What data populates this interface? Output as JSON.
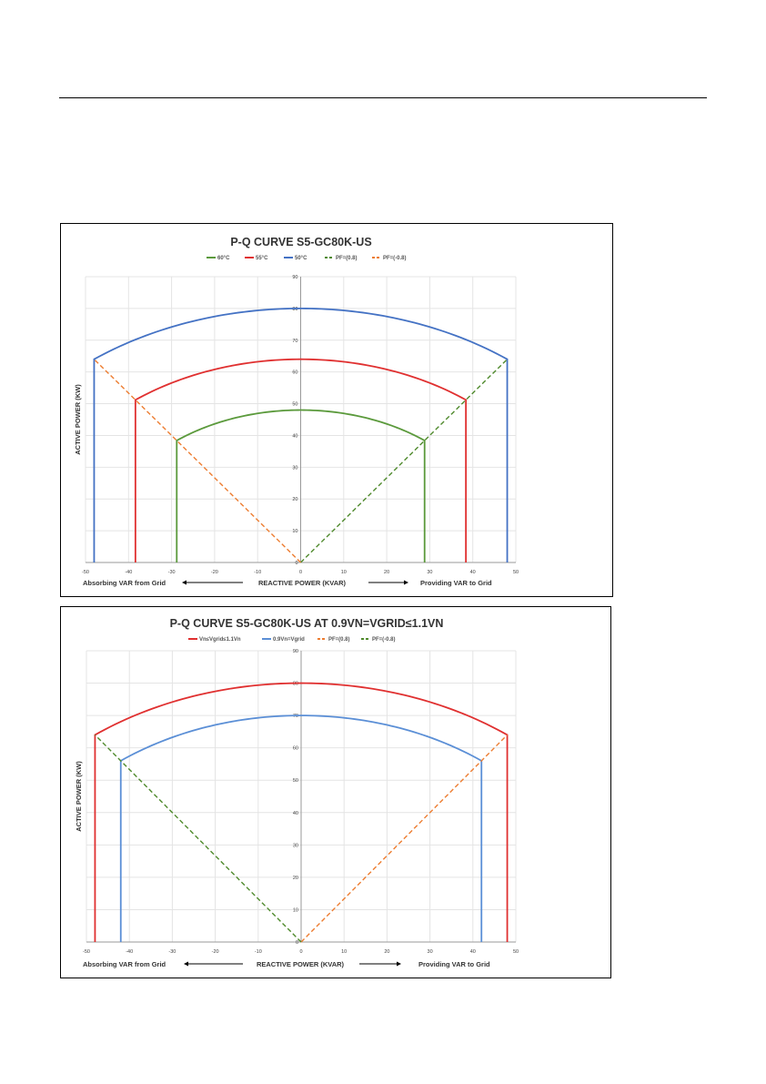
{
  "colors": {
    "green": "#5b9a3c",
    "red": "#e03030",
    "blue": "#4472c4",
    "orange": "#ed7d31",
    "grid": "#e4e4e4",
    "dark_green": "#4f8a2c",
    "light_blue": "#5b8fd6"
  },
  "chart_data": [
    {
      "type": "line",
      "title": "P-Q CURVE S5-GC80K-US",
      "xlabel": "REACTIVE POWER (KVAR)",
      "ylabel": "ACTIVE POWER (KW)",
      "xlim": [
        -50,
        50
      ],
      "ylim": [
        0,
        90
      ],
      "xticks": [
        -50,
        -40,
        -30,
        -20,
        -10,
        0,
        10,
        20,
        30,
        40,
        50
      ],
      "yticks": [
        0,
        10,
        20,
        30,
        40,
        50,
        60,
        70,
        80,
        90
      ],
      "grid": true,
      "legend_position": "top",
      "annotation_left": "Absorbing VAR from Grid",
      "annotation_right": "Providing VAR to Grid",
      "series": [
        {
          "name": "60°C",
          "color": "#5b9a3c",
          "style": "solid",
          "kind": "arc",
          "apparent": 48,
          "corner_q": 28.8,
          "corner_p": 38.4
        },
        {
          "name": "55°C",
          "color": "#e03030",
          "style": "solid",
          "kind": "arc",
          "apparent": 64,
          "corner_q": 38.4,
          "corner_p": 51.2
        },
        {
          "name": "50°C",
          "color": "#4472c4",
          "style": "solid",
          "kind": "arc",
          "apparent": 80,
          "corner_q": 48,
          "corner_p": 64
        },
        {
          "name": "PF=(0.8)",
          "color": "#4f8a2c",
          "style": "dashed",
          "kind": "line",
          "points": [
            [
              0,
              0
            ],
            [
              48,
              64
            ]
          ]
        },
        {
          "name": "PF=(-0.8)",
          "color": "#ed7d31",
          "style": "dashed",
          "kind": "line",
          "points": [
            [
              0,
              0
            ],
            [
              -48,
              64
            ]
          ]
        }
      ]
    },
    {
      "type": "line",
      "title": "P-Q CURVE S5-GC80K-US AT 0.9VN=VGRID≤1.1VN",
      "xlabel": "REACTIVE POWER (KVAR)",
      "ylabel": "ACTIVE POWER (KW)",
      "xlim": [
        -50,
        50
      ],
      "ylim": [
        0,
        90
      ],
      "xticks": [
        -50,
        -40,
        -30,
        -20,
        -10,
        0,
        10,
        20,
        30,
        40,
        50
      ],
      "yticks": [
        0,
        10,
        20,
        30,
        40,
        50,
        60,
        70,
        80,
        90
      ],
      "grid": true,
      "legend_position": "top",
      "annotation_left": "Absorbing VAR from Grid",
      "annotation_right": "Providing VAR to Grid",
      "series": [
        {
          "name": "Vn≤Vgrid≤1.1Vn",
          "color": "#e03030",
          "style": "solid",
          "kind": "arc",
          "apparent": 80,
          "corner_q": 48,
          "corner_p": 64
        },
        {
          "name": "0.9Vn=Vgrid",
          "color": "#5b8fd6",
          "style": "solid",
          "kind": "arc",
          "apparent": 70,
          "corner_q": 42,
          "corner_p": 56
        },
        {
          "name": "PF=(0.8)",
          "color": "#ed7d31",
          "style": "dashed",
          "kind": "line",
          "points": [
            [
              0,
              0
            ],
            [
              48,
              64
            ]
          ]
        },
        {
          "name": "PF=(-0.8)",
          "color": "#4f8a2c",
          "style": "dashed",
          "kind": "line",
          "points": [
            [
              0,
              0
            ],
            [
              -48,
              64
            ]
          ]
        }
      ]
    }
  ]
}
